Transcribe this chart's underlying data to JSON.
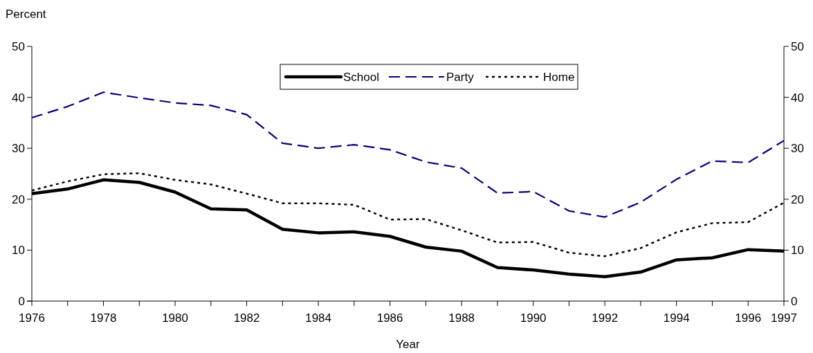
{
  "chart_data": {
    "type": "line",
    "ylabel": "Percent",
    "xlabel": "Year",
    "x": [
      1976,
      1977,
      1978,
      1979,
      1980,
      1981,
      1982,
      1983,
      1984,
      1985,
      1986,
      1987,
      1988,
      1989,
      1990,
      1991,
      1992,
      1993,
      1994,
      1995,
      1996,
      1997
    ],
    "xlim": [
      1976,
      1997
    ],
    "xticks": [
      1976,
      {
        "value": 1977,
        "label": null
      },
      1978,
      {
        "value": 1979,
        "label": null
      },
      1980,
      {
        "value": 1981,
        "label": null
      },
      1982,
      {
        "value": 1983,
        "label": null
      },
      1984,
      {
        "value": 1985,
        "label": null
      },
      1986,
      {
        "value": 1987,
        "label": null
      },
      1988,
      {
        "value": 1989,
        "label": null
      },
      1990,
      {
        "value": 1991,
        "label": null
      },
      1992,
      {
        "value": 1993,
        "label": null
      },
      1994,
      {
        "value": 1995,
        "label": null
      },
      1996,
      1997
    ],
    "ylim": [
      0,
      50
    ],
    "yticks": [
      0,
      10,
      20,
      30,
      40,
      50
    ],
    "y2lim": [
      0,
      50
    ],
    "y2ticks": [
      0,
      10,
      20,
      30,
      40,
      50
    ],
    "grid": false,
    "legend": "top",
    "marker": "none",
    "series": [
      {
        "name": "School",
        "color": "#000000",
        "line_style": "solid",
        "values": [
          21.1,
          22,
          23.8,
          23.3,
          21.4,
          18.1,
          17.9,
          14.1,
          13.4,
          13.6,
          12.7,
          10.6,
          9.8,
          6.6,
          6.1,
          5.3,
          4.8,
          5.7,
          8.1,
          8.5,
          10.1,
          9.8
        ]
      },
      {
        "name": "Party",
        "color": "#000080",
        "line_style": "dashed",
        "values": [
          36,
          38.2,
          41,
          39.9,
          38.9,
          38.4,
          36.6,
          31,
          30,
          30.7,
          29.7,
          27.3,
          26.1,
          21.2,
          21.5,
          17.7,
          16.5,
          19.4,
          23.9,
          27.5,
          27.2,
          31.5
        ]
      },
      {
        "name": "Home",
        "color": "#000000",
        "line_style": "dotted",
        "values": [
          21.7,
          23.5,
          24.9,
          25.1,
          23.8,
          22.9,
          21.1,
          19.2,
          19.2,
          18.9,
          16,
          16.1,
          13.9,
          11.5,
          11.6,
          9.5,
          8.8,
          10.4,
          13.5,
          15.3,
          15.5,
          19.3
        ]
      }
    ]
  }
}
